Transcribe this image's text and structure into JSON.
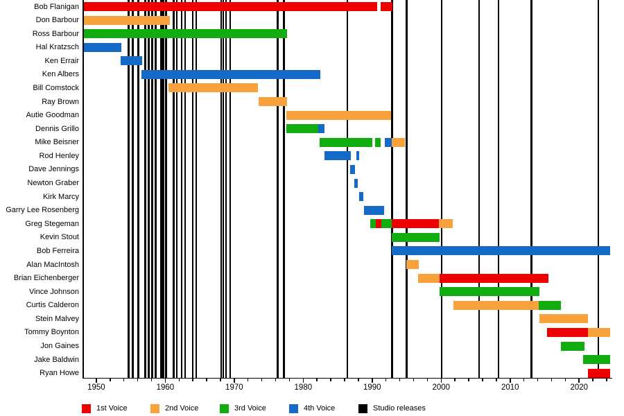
{
  "chart_data": {
    "type": "timeline",
    "title": "",
    "x_axis": {
      "range": [
        1948.1,
        2024.5
      ],
      "major_ticks": [
        1950,
        1960,
        1970,
        1980,
        1990,
        2000,
        2010,
        2020
      ],
      "tick_labels": [
        "1950",
        "1960",
        "1970",
        "1980",
        "1990",
        "2000",
        "2010",
        "2020"
      ],
      "minor_tick_step": 2,
      "grid": false
    },
    "colors": {
      "1st Voice": "#EE0000",
      "2nd Voice": "#F7A23C",
      "3rd Voice": "#10AC10",
      "4th Voice": "#1569C7",
      "Studio releases": "#000000"
    },
    "legend": {
      "position": "bottom",
      "items": [
        {
          "label": "1st Voice",
          "color": "#EE0000"
        },
        {
          "label": "2nd Voice",
          "color": "#F7A23C"
        },
        {
          "label": "3rd Voice",
          "color": "#10AC10"
        },
        {
          "label": "4th Voice",
          "color": "#1569C7"
        },
        {
          "label": "Studio releases",
          "color": "#000000"
        }
      ]
    },
    "members": [
      {
        "name": "Bob Flanigan",
        "segments": [
          {
            "voice": "1st Voice",
            "start": 1948.2,
            "end": 1990.7
          },
          {
            "voice": "1st Voice",
            "start": 1991.2,
            "end": 1992.9
          }
        ]
      },
      {
        "name": "Don Barbour",
        "segments": [
          {
            "voice": "2nd Voice",
            "start": 1948.2,
            "end": 1960.7
          }
        ]
      },
      {
        "name": "Ross Barbour",
        "segments": [
          {
            "voice": "3rd Voice",
            "start": 1948.2,
            "end": 1977.7
          }
        ]
      },
      {
        "name": "Hal Kratzsch",
        "segments": [
          {
            "voice": "4th Voice",
            "start": 1948.2,
            "end": 1953.6
          }
        ]
      },
      {
        "name": "Ken Errair",
        "segments": [
          {
            "voice": "4th Voice",
            "start": 1953.5,
            "end": 1956.6
          }
        ]
      },
      {
        "name": "Ken Albers",
        "segments": [
          {
            "voice": "4th Voice",
            "start": 1956.5,
            "end": 1982.5
          }
        ]
      },
      {
        "name": "Bill Comstock",
        "segments": [
          {
            "voice": "2nd Voice",
            "start": 1960.5,
            "end": 1973.4
          }
        ]
      },
      {
        "name": "Ray Brown",
        "segments": [
          {
            "voice": "2nd Voice",
            "start": 1973.5,
            "end": 1977.7
          }
        ]
      },
      {
        "name": "Autie Goodman",
        "segments": [
          {
            "voice": "2nd Voice",
            "start": 1977.6,
            "end": 1992.7
          }
        ]
      },
      {
        "name": "Dennis Grillo",
        "segments": [
          {
            "voice": "3rd Voice",
            "start": 1977.6,
            "end": 1982.2
          },
          {
            "voice": "4th Voice",
            "start": 1982.2,
            "end": 1983.1
          }
        ]
      },
      {
        "name": "Mike Beisner",
        "segments": [
          {
            "voice": "3rd Voice",
            "start": 1982.4,
            "end": 1990.0
          },
          {
            "voice": "3rd Voice",
            "start": 1990.4,
            "end": 1991.2
          },
          {
            "voice": "4th Voice",
            "start": 1991.8,
            "end": 1992.8
          },
          {
            "voice": "2nd Voice",
            "start": 1992.8,
            "end": 1994.7
          }
        ]
      },
      {
        "name": "Rod Henley",
        "segments": [
          {
            "voice": "4th Voice",
            "start": 1983.1,
            "end": 1986.9
          },
          {
            "voice": "4th Voice",
            "start": 1987.7,
            "end": 1988.1
          }
        ]
      },
      {
        "name": "Dave Jennings",
        "segments": [
          {
            "voice": "4th Voice",
            "start": 1986.8,
            "end": 1987.5
          }
        ]
      },
      {
        "name": "Newton Graber",
        "segments": [
          {
            "voice": "4th Voice",
            "start": 1987.4,
            "end": 1987.9
          }
        ]
      },
      {
        "name": "Kirk Marcy",
        "segments": [
          {
            "voice": "4th Voice",
            "start": 1988.1,
            "end": 1988.7
          }
        ]
      },
      {
        "name": "Garry Lee Rosenberg",
        "segments": [
          {
            "voice": "4th Voice",
            "start": 1988.8,
            "end": 1991.7
          }
        ]
      },
      {
        "name": "Greg Stegeman",
        "segments": [
          {
            "voice": "3rd Voice",
            "start": 1989.7,
            "end": 1990.5
          },
          {
            "voice": "1st Voice",
            "start": 1990.5,
            "end": 1991.3
          },
          {
            "voice": "3rd Voice",
            "start": 1991.3,
            "end": 1992.8
          },
          {
            "voice": "1st Voice",
            "start": 1992.8,
            "end": 1999.7
          },
          {
            "voice": "2nd Voice",
            "start": 1999.7,
            "end": 2001.7
          }
        ]
      },
      {
        "name": "Kevin Stout",
        "segments": [
          {
            "voice": "3rd Voice",
            "start": 1992.8,
            "end": 1999.8
          }
        ]
      },
      {
        "name": "Bob Ferreira",
        "segments": [
          {
            "voice": "4th Voice",
            "start": 1992.8,
            "end": 2024.5
          }
        ]
      },
      {
        "name": "Alan MacIntosh",
        "segments": [
          {
            "voice": "2nd Voice",
            "start": 1994.9,
            "end": 1996.8
          }
        ]
      },
      {
        "name": "Brian Eichenberger",
        "segments": [
          {
            "voice": "2nd Voice",
            "start": 1996.7,
            "end": 1999.8
          },
          {
            "voice": "1st Voice",
            "start": 1999.8,
            "end": 2015.6
          }
        ]
      },
      {
        "name": "Vince Johnson",
        "segments": [
          {
            "voice": "3rd Voice",
            "start": 1999.8,
            "end": 2014.2
          }
        ]
      },
      {
        "name": "Curtis Calderon",
        "segments": [
          {
            "voice": "2nd Voice",
            "start": 2001.8,
            "end": 2014.1
          },
          {
            "voice": "3rd Voice",
            "start": 2014.1,
            "end": 2017.4
          }
        ]
      },
      {
        "name": "Stein Malvey",
        "segments": [
          {
            "voice": "2nd Voice",
            "start": 2014.2,
            "end": 2021.3
          }
        ]
      },
      {
        "name": "Tommy Boynton",
        "segments": [
          {
            "voice": "1st Voice",
            "start": 2015.4,
            "end": 2021.3
          },
          {
            "voice": "2nd Voice",
            "start": 2021.3,
            "end": 2024.5
          }
        ]
      },
      {
        "name": "Jon Gaines",
        "segments": [
          {
            "voice": "3rd Voice",
            "start": 2017.4,
            "end": 2020.8
          }
        ]
      },
      {
        "name": "Jake Baldwin",
        "segments": [
          {
            "voice": "3rd Voice",
            "start": 2020.6,
            "end": 2024.5
          }
        ]
      },
      {
        "name": "Ryan Howe",
        "segments": [
          {
            "voice": "1st Voice",
            "start": 2021.3,
            "end": 2024.5
          }
        ]
      }
    ],
    "studio_releases": [
      1954.7,
      1955.3,
      1956.1,
      1957.1,
      1957.6,
      1958.1,
      1958.6,
      1959.4,
      1959.7,
      1960.1,
      1961.2,
      1961.7,
      1962.4,
      1962.9,
      1964.0,
      1964.5,
      1968.1,
      1968.4,
      1968.8,
      1969.4,
      1976.3,
      1977.2,
      1986.4,
      1992.9,
      1995.0,
      2000.1,
      2005.5,
      2008.3,
      2013.1,
      2022.8
    ]
  }
}
